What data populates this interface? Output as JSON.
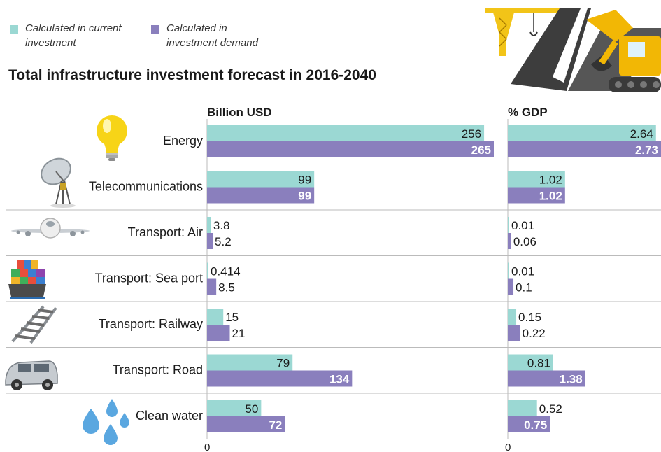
{
  "legend": {
    "current_line1": "Calculated in current",
    "current_line2": "investment",
    "demand_line1": "Calculated in",
    "demand_line2": "investment demand"
  },
  "colors": {
    "current": "#9bd8d3",
    "demand": "#8a7fbd",
    "divider": "#bbbbbb"
  },
  "icons": [
    "construction-scene-icon",
    "lightbulb-icon",
    "satellite-dish-icon",
    "airplane-icon",
    "cargo-ship-icon",
    "railway-track-icon",
    "car-icon",
    "water-drops-icon"
  ],
  "chart_data": {
    "type": "bar",
    "orientation": "horizontal",
    "title": "Total infrastructure investment forecast in 2016-2040",
    "categories": [
      "Energy",
      "Telecommunications",
      "Transport: Air",
      "Transport: Sea port",
      "Transport: Railway",
      "Transport: Road",
      "Clean water"
    ],
    "panels": [
      {
        "id": "billion",
        "header": "Billion USD",
        "axis_zero_label": "0",
        "xlim": [
          0,
          265
        ],
        "series": [
          {
            "name": "Calculated in current investment",
            "values": [
              256,
              99,
              3.8,
              0.414,
              15,
              79,
              50
            ],
            "labels": [
              "256",
              "99",
              "3.8",
              "0.414",
              "15",
              "79",
              "50"
            ]
          },
          {
            "name": "Calculated in investment demand",
            "values": [
              265,
              99,
              5.2,
              8.5,
              21,
              134,
              72
            ],
            "labels": [
              "265",
              "99",
              "5.2",
              "8.5",
              "21",
              "134",
              "72"
            ]
          }
        ]
      },
      {
        "id": "gdp",
        "header": "% GDP",
        "axis_zero_label": "0",
        "xlim": [
          0,
          2.73
        ],
        "series": [
          {
            "name": "Calculated in current investment",
            "values": [
              2.64,
              1.02,
              0.01,
              0.01,
              0.15,
              0.81,
              0.52
            ],
            "labels": [
              "2.64",
              "1.02",
              "0.01",
              "0.01",
              "0.15",
              "0.81",
              "0.52"
            ]
          },
          {
            "name": "Calculated in investment demand",
            "values": [
              2.73,
              1.02,
              0.06,
              0.1,
              0.22,
              1.38,
              0.75
            ],
            "labels": [
              "2.73",
              "1.02",
              "0.06",
              "0.1",
              "0.22",
              "1.38",
              "0.75"
            ]
          }
        ]
      }
    ]
  }
}
